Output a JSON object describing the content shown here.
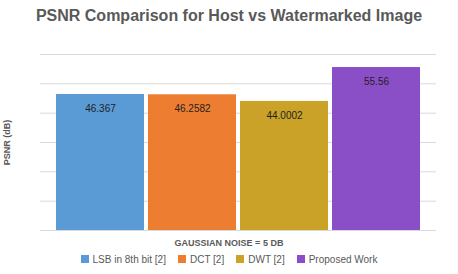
{
  "chart_data": {
    "type": "bar",
    "title": "PSNR Comparison for Host vs Watermarked Image",
    "x_label": "GAUSSIAN NOISE = 5 DB",
    "y_label": "PSNR (dB)",
    "categories": [
      "LSB in 8th bit [2]",
      "DCT [2]",
      "DWT [2]",
      "Proposed Work"
    ],
    "values": [
      46.367,
      46.2582,
      44.0002,
      55.56
    ],
    "colors": [
      "#5b9bd5",
      "#ed7d31",
      "#c9a227",
      "#8a4fc7"
    ],
    "ylim": [
      0,
      60
    ],
    "yticks": [
      0,
      10,
      20,
      30,
      40,
      50,
      60
    ],
    "grid": true,
    "data_labels": true,
    "tick_labels": false,
    "legend": "bottom"
  }
}
